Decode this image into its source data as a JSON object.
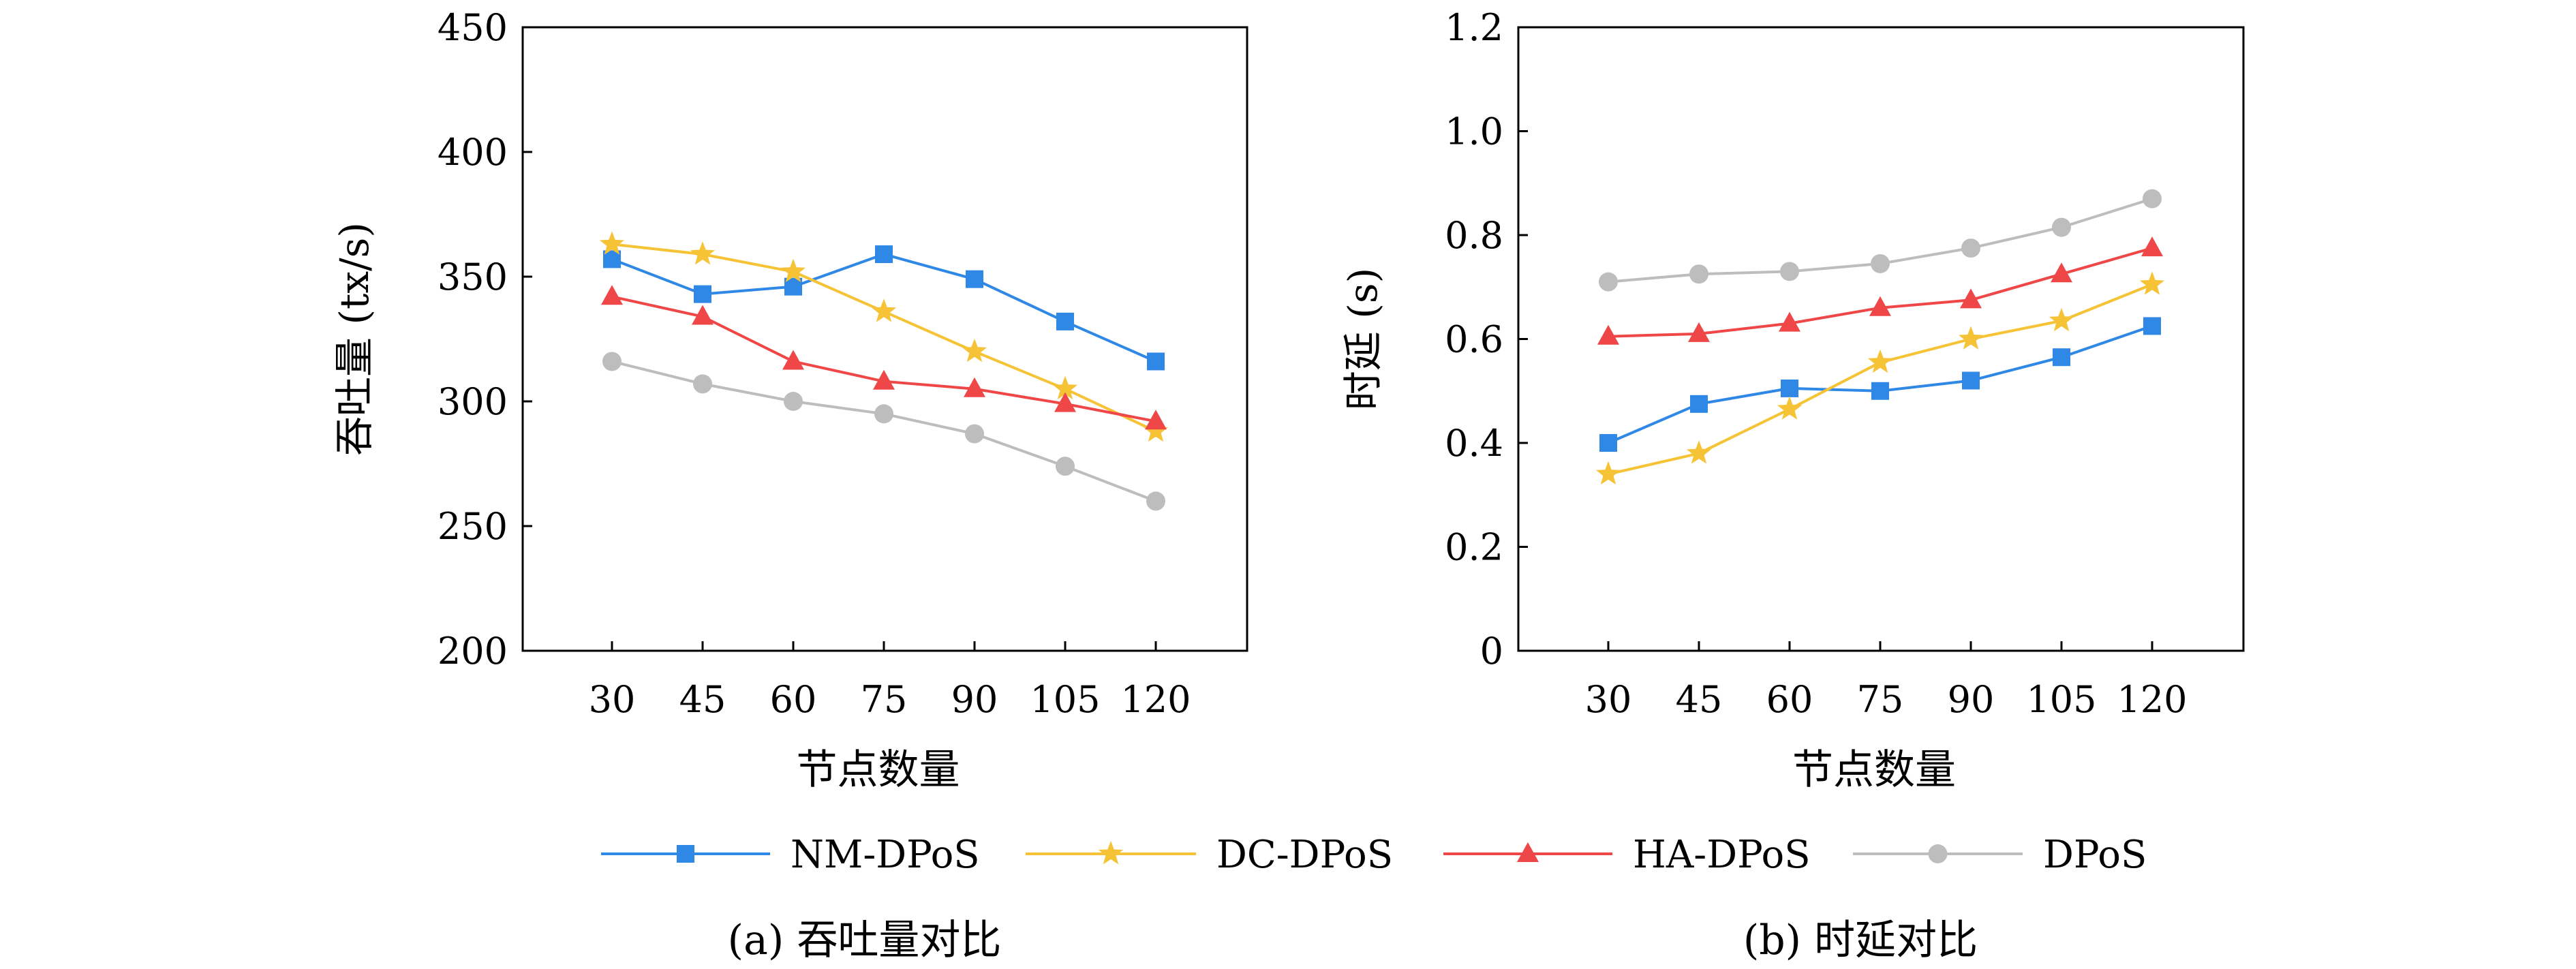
{
  "legend": [
    {
      "name": "NM-DPoS",
      "color": "#2f88e6",
      "marker": "square"
    },
    {
      "name": "DC-DPoS",
      "color": "#f5c335",
      "marker": "star"
    },
    {
      "name": "HA-DPoS",
      "color": "#ef4747",
      "marker": "triangle"
    },
    {
      "name": "DPoS",
      "color": "#bdbdbd",
      "marker": "circle"
    }
  ],
  "chart_data": [
    {
      "type": "line",
      "caption": "(a) 吞吐量对比",
      "xlabel": "节点数量",
      "ylabel": "吞吐量 (tx/s)",
      "categories": [
        "30",
        "45",
        "60",
        "75",
        "90",
        "105",
        "120"
      ],
      "ylim": [
        200,
        450
      ],
      "yticks": [
        "200",
        "250",
        "300",
        "350",
        "400",
        "450"
      ],
      "grid": false,
      "series": [
        {
          "name": "NM-DPoS",
          "values": [
            357,
            343,
            346,
            359,
            349,
            332,
            316
          ]
        },
        {
          "name": "DC-DPoS",
          "values": [
            363,
            359,
            352,
            336,
            320,
            305,
            288
          ]
        },
        {
          "name": "HA-DPoS",
          "values": [
            342,
            334,
            316,
            308,
            305,
            299,
            292
          ]
        },
        {
          "name": "DPoS",
          "values": [
            316,
            307,
            300,
            295,
            287,
            274,
            260
          ]
        }
      ]
    },
    {
      "type": "line",
      "caption": "(b) 时延对比",
      "xlabel": "节点数量",
      "ylabel": "时延 (s)",
      "categories": [
        "30",
        "45",
        "60",
        "75",
        "90",
        "105",
        "120"
      ],
      "ylim": [
        0,
        1.2
      ],
      "yticks": [
        "0",
        "0.2",
        "0.4",
        "0.6",
        "0.8",
        "1.0",
        "1.2"
      ],
      "grid": false,
      "series": [
        {
          "name": "NM-DPoS",
          "values": [
            0.4,
            0.475,
            0.505,
            0.5,
            0.52,
            0.565,
            0.625
          ]
        },
        {
          "name": "DC-DPoS",
          "values": [
            0.34,
            0.38,
            0.465,
            0.555,
            0.6,
            0.635,
            0.705
          ]
        },
        {
          "name": "HA-DPoS",
          "values": [
            0.605,
            0.61,
            0.63,
            0.66,
            0.675,
            0.725,
            0.775
          ]
        },
        {
          "name": "DPoS",
          "values": [
            0.71,
            0.725,
            0.73,
            0.745,
            0.775,
            0.815,
            0.87
          ]
        }
      ]
    }
  ]
}
